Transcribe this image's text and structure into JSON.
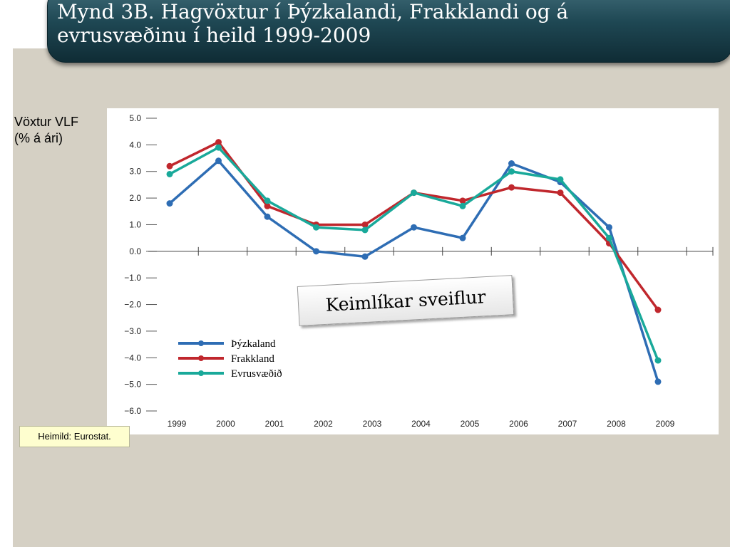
{
  "title": {
    "line1": "Mynd 3B. Hagvöxtur í Þýzkalandi, Frakklandi og á",
    "line2": "evrusvæðinu í heild 1999-2009"
  },
  "y_axis_label": {
    "line1": "Vöxtur VLF",
    "line2": "(% á ári)"
  },
  "callout": "Keimlíkar sveiflur",
  "source": "Heimild: Eurostat.",
  "colors": {
    "background": "#d5d0c4",
    "title_bar": "#1f4854",
    "germany": "#2e6db4",
    "france": "#c0272d",
    "eurozone": "#19a99a"
  },
  "chart_data": {
    "type": "line",
    "categories": [
      "1999",
      "2000",
      "2001",
      "2002",
      "2003",
      "2004",
      "2005",
      "2006",
      "2007",
      "2008",
      "2009"
    ],
    "yticks": [
      "5.0",
      "4.0",
      "3.0",
      "2.0",
      "1.0",
      "0.0",
      "−1.0",
      "−2.0",
      "−3.0",
      "−4.0",
      "−5.0",
      "−6.0"
    ],
    "ylim": [
      -6,
      5
    ],
    "legend_position": "lower-left",
    "grid": false,
    "series": [
      {
        "name": "Þýzkaland",
        "color": "#2e6db4",
        "values": [
          1.8,
          3.4,
          1.3,
          0.0,
          -0.2,
          0.9,
          0.5,
          3.3,
          2.6,
          0.9,
          -4.9
        ]
      },
      {
        "name": "Frakkland",
        "color": "#c0272d",
        "values": [
          3.2,
          4.1,
          1.7,
          1.0,
          1.0,
          2.2,
          1.9,
          2.4,
          2.2,
          0.3,
          -2.2
        ]
      },
      {
        "name": "Evrusvæðið",
        "color": "#19a99a",
        "values": [
          2.9,
          3.9,
          1.9,
          0.9,
          0.8,
          2.2,
          1.7,
          3.0,
          2.7,
          0.5,
          -4.1
        ]
      }
    ]
  }
}
